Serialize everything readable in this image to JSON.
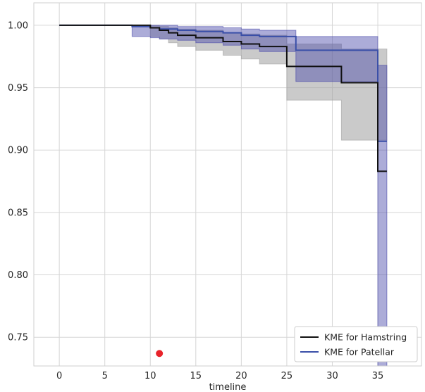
{
  "chart_data": {
    "type": "line",
    "title": "",
    "xlabel": "timeline",
    "ylabel": "",
    "xlim": [
      -2.8,
      39.8
    ],
    "ylim": [
      0.727,
      1.018
    ],
    "xticks": [
      0,
      5,
      10,
      15,
      20,
      25,
      30,
      35
    ],
    "xtick_labels": [
      "0",
      "5",
      "10",
      "15",
      "20",
      "25",
      "30",
      "35"
    ],
    "yticks": [
      0.75,
      0.8,
      0.85,
      0.9,
      0.95,
      1.0
    ],
    "ytick_labels": [
      "0.75",
      "0.80",
      "0.85",
      "0.90",
      "0.95",
      "1.00"
    ],
    "grid": true,
    "legend_position": "lower-right",
    "colors": {
      "hamstring": "#111111",
      "patellar": "#3a4fa8",
      "hamstring_ci": "#9e9e9e",
      "patellar_ci": "#4848a8",
      "marker": "#e8232a",
      "grid": "#d6d6d6",
      "spine": "#cfcfcf"
    },
    "series": [
      {
        "name": "KME for Hamstring",
        "color": "#111111",
        "x": [
          0,
          10,
          11,
          12,
          13,
          15,
          18,
          20,
          22,
          25,
          31,
          35,
          36
        ],
        "y": [
          1.0,
          0.998,
          0.996,
          0.994,
          0.992,
          0.99,
          0.987,
          0.985,
          0.983,
          0.967,
          0.954,
          0.883,
          0.883
        ],
        "ci_lower": [
          1.0,
          0.991,
          0.989,
          0.986,
          0.983,
          0.98,
          0.976,
          0.973,
          0.969,
          0.94,
          0.908,
          0.908,
          0.908
        ],
        "ci_upper": [
          1.0,
          1.0,
          0.999,
          0.998,
          0.997,
          0.996,
          0.994,
          0.993,
          0.992,
          0.985,
          0.981,
          0.981,
          0.981
        ]
      },
      {
        "name": "KME for Patellar",
        "color": "#3a4fa8",
        "x": [
          0,
          8,
          10,
          11,
          13,
          15,
          18,
          20,
          22,
          26,
          35,
          36
        ],
        "y": [
          1.0,
          0.999,
          0.998,
          0.997,
          0.996,
          0.995,
          0.994,
          0.992,
          0.991,
          0.98,
          0.907,
          0.907
        ],
        "ci_lower": [
          1.0,
          0.991,
          0.99,
          0.989,
          0.988,
          0.986,
          0.984,
          0.981,
          0.979,
          0.955,
          0.727,
          0.727
        ],
        "ci_upper": [
          1.0,
          1.0,
          1.0,
          1.0,
          0.999,
          0.999,
          0.998,
          0.997,
          0.996,
          0.991,
          0.968,
          0.968
        ]
      }
    ],
    "points": [
      {
        "x": 11,
        "y": 0.737,
        "color": "#e8232a"
      }
    ]
  }
}
